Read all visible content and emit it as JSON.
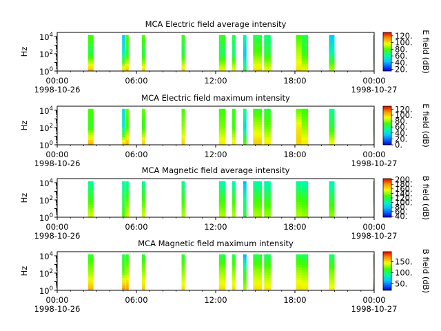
{
  "chart_data": [
    {
      "type": "heatmap",
      "title": "MCA  Electric field average intensity",
      "ylabel": "Hz",
      "y_scale": "log",
      "ylim": [
        1,
        30000
      ],
      "yticks": [
        {
          "value": 1,
          "base": "10",
          "exp": "0"
        },
        {
          "value": 100,
          "base": "10",
          "exp": "2"
        },
        {
          "value": 10000,
          "base": "10",
          "exp": "4"
        }
      ],
      "xlim": [
        "1998-10-26T00:00",
        "1998-10-27T00:00"
      ],
      "xticks": [
        {
          "time": "1998-10-26T00:00",
          "label": "00:00",
          "date": "1998-10-26"
        },
        {
          "time": "1998-10-26T06:00",
          "label": "06:00",
          "date": ""
        },
        {
          "time": "1998-10-26T12:00",
          "label": "12:00",
          "date": ""
        },
        {
          "time": "1998-10-26T18:00",
          "label": "18:00",
          "date": ""
        },
        {
          "time": "1998-10-27T00:00",
          "label": "00:00",
          "date": "1998-10-27"
        }
      ],
      "colorbar": {
        "label": "E field (dB)",
        "range": [
          15,
          130
        ],
        "ticks": [
          {
            "value": 20,
            "label": "20."
          },
          {
            "value": 40,
            "label": "40."
          },
          {
            "value": 60,
            "label": "60."
          },
          {
            "value": 80,
            "label": "80."
          },
          {
            "value": 100,
            "label": "100."
          },
          {
            "value": 120,
            "label": "120."
          }
        ]
      },
      "segments": [
        {
          "start": "1998-10-26T02:20",
          "end": "1998-10-26T02:45",
          "low_db": 105,
          "mid_db": 70,
          "high_db": 78
        },
        {
          "start": "1998-10-26T04:55",
          "end": "1998-10-26T05:08",
          "low_db": 100,
          "mid_db": 55,
          "high_db": 45
        },
        {
          "start": "1998-10-26T05:10",
          "end": "1998-10-26T05:25",
          "low_db": 105,
          "mid_db": 72,
          "high_db": 80
        },
        {
          "start": "1998-10-26T06:25",
          "end": "1998-10-26T06:40",
          "low_db": 100,
          "mid_db": 70,
          "high_db": 80
        },
        {
          "start": "1998-10-26T09:25",
          "end": "1998-10-26T09:40",
          "low_db": 100,
          "mid_db": 70,
          "high_db": 75
        },
        {
          "start": "1998-10-26T12:15",
          "end": "1998-10-26T12:45",
          "low_db": 95,
          "mid_db": 68,
          "high_db": 75
        },
        {
          "start": "1998-10-26T13:15",
          "end": "1998-10-26T13:30",
          "low_db": 95,
          "mid_db": 65,
          "high_db": 70
        },
        {
          "start": "1998-10-26T14:05",
          "end": "1998-10-26T14:20",
          "low_db": 70,
          "mid_db": 45,
          "high_db": 60
        },
        {
          "start": "1998-10-26T14:50",
          "end": "1998-10-26T15:30",
          "low_db": 100,
          "mid_db": 80,
          "high_db": 70
        },
        {
          "start": "1998-10-26T15:40",
          "end": "1998-10-26T16:10",
          "low_db": 95,
          "mid_db": 72,
          "high_db": 65
        },
        {
          "start": "1998-10-26T18:05",
          "end": "1998-10-26T18:30",
          "low_db": 100,
          "mid_db": 90,
          "high_db": 78
        },
        {
          "start": "1998-10-26T18:30",
          "end": "1998-10-26T19:00",
          "low_db": 95,
          "mid_db": 75,
          "high_db": 70
        },
        {
          "start": "1998-10-26T20:35",
          "end": "1998-10-26T21:00",
          "low_db": 90,
          "mid_db": 60,
          "high_db": 45
        },
        {
          "start": "1998-10-26T23:55",
          "end": "1998-10-27T00:00",
          "low_db": 95,
          "mid_db": 65,
          "high_db": 70
        }
      ]
    },
    {
      "type": "heatmap",
      "title": "MCA  Electric field maximum intensity",
      "ylabel": "Hz",
      "y_scale": "log",
      "ylim": [
        1,
        30000
      ],
      "yticks": [
        {
          "value": 1,
          "base": "10",
          "exp": "0"
        },
        {
          "value": 100,
          "base": "10",
          "exp": "2"
        },
        {
          "value": 10000,
          "base": "10",
          "exp": "4"
        }
      ],
      "xlim": [
        "1998-10-26T00:00",
        "1998-10-27T00:00"
      ],
      "xticks": [
        {
          "time": "1998-10-26T00:00",
          "label": "00:00",
          "date": "1998-10-26"
        },
        {
          "time": "1998-10-26T06:00",
          "label": "06:00",
          "date": ""
        },
        {
          "time": "1998-10-26T12:00",
          "label": "12:00",
          "date": ""
        },
        {
          "time": "1998-10-26T18:00",
          "label": "18:00",
          "date": ""
        },
        {
          "time": "1998-10-27T00:00",
          "label": "00:00",
          "date": "1998-10-27"
        }
      ],
      "colorbar": {
        "label": "E field (dB)",
        "range": [
          0,
          130
        ],
        "ticks": [
          {
            "value": 0,
            "label": "0."
          },
          {
            "value": 20,
            "label": "20."
          },
          {
            "value": 40,
            "label": "40."
          },
          {
            "value": 60,
            "label": "60."
          },
          {
            "value": 80,
            "label": "80."
          },
          {
            "value": 100,
            "label": "100."
          },
          {
            "value": 120,
            "label": "120."
          }
        ]
      },
      "segments": [
        {
          "start": "1998-10-26T02:20",
          "end": "1998-10-26T02:45",
          "low_db": 105,
          "mid_db": 68,
          "high_db": 72
        },
        {
          "start": "1998-10-26T04:55",
          "end": "1998-10-26T05:08",
          "low_db": 100,
          "mid_db": 45,
          "high_db": 40
        },
        {
          "start": "1998-10-26T05:10",
          "end": "1998-10-26T05:25",
          "low_db": 105,
          "mid_db": 70,
          "high_db": 75
        },
        {
          "start": "1998-10-26T06:25",
          "end": "1998-10-26T06:40",
          "low_db": 100,
          "mid_db": 68,
          "high_db": 75
        },
        {
          "start": "1998-10-26T09:25",
          "end": "1998-10-26T09:40",
          "low_db": 100,
          "mid_db": 80,
          "high_db": 72
        },
        {
          "start": "1998-10-26T12:15",
          "end": "1998-10-26T12:45",
          "low_db": 95,
          "mid_db": 78,
          "high_db": 70
        },
        {
          "start": "1998-10-26T13:15",
          "end": "1998-10-26T13:30",
          "low_db": 95,
          "mid_db": 70,
          "high_db": 68
        },
        {
          "start": "1998-10-26T14:05",
          "end": "1998-10-26T14:20",
          "low_db": 75,
          "mid_db": 40,
          "high_db": 55
        },
        {
          "start": "1998-10-26T14:50",
          "end": "1998-10-26T15:30",
          "low_db": 100,
          "mid_db": 85,
          "high_db": 68
        },
        {
          "start": "1998-10-26T15:40",
          "end": "1998-10-26T16:10",
          "low_db": 95,
          "mid_db": 75,
          "high_db": 65
        },
        {
          "start": "1998-10-26T18:05",
          "end": "1998-10-26T18:30",
          "low_db": 100,
          "mid_db": 95,
          "high_db": 75
        },
        {
          "start": "1998-10-26T18:30",
          "end": "1998-10-26T19:00",
          "low_db": 95,
          "mid_db": 80,
          "high_db": 70
        },
        {
          "start": "1998-10-26T20:35",
          "end": "1998-10-26T21:00",
          "low_db": 92,
          "mid_db": 65,
          "high_db": 55
        },
        {
          "start": "1998-10-26T23:55",
          "end": "1998-10-27T00:00",
          "low_db": 95,
          "mid_db": 60,
          "high_db": 65
        }
      ]
    },
    {
      "type": "heatmap",
      "title": "MCA  Magnetic field average intensity",
      "ylabel": "Hz",
      "y_scale": "log",
      "ylim": [
        1,
        30000
      ],
      "yticks": [
        {
          "value": 1,
          "base": "10",
          "exp": "0"
        },
        {
          "value": 100,
          "base": "10",
          "exp": "2"
        },
        {
          "value": 10000,
          "base": "10",
          "exp": "4"
        }
      ],
      "xlim": [
        "1998-10-26T00:00",
        "1998-10-27T00:00"
      ],
      "xticks": [
        {
          "time": "1998-10-26T00:00",
          "label": "00:00",
          "date": "1998-10-26"
        },
        {
          "time": "1998-10-26T06:00",
          "label": "06:00",
          "date": ""
        },
        {
          "time": "1998-10-26T12:00",
          "label": "12:00",
          "date": ""
        },
        {
          "time": "1998-10-26T18:00",
          "label": "18:00",
          "date": ""
        },
        {
          "time": "1998-10-27T00:00",
          "label": "00:00",
          "date": "1998-10-27"
        }
      ],
      "colorbar": {
        "label": "B field (dB)",
        "range": [
          35,
          205
        ],
        "ticks": [
          {
            "value": 40,
            "label": "40."
          },
          {
            "value": 60,
            "label": "60."
          },
          {
            "value": 80,
            "label": "80."
          },
          {
            "value": 100,
            "label": "100."
          },
          {
            "value": 120,
            "label": "120."
          },
          {
            "value": 140,
            "label": "140."
          },
          {
            "value": 160,
            "label": "160."
          },
          {
            "value": 180,
            "label": "180."
          },
          {
            "value": 200,
            "label": "200."
          }
        ]
      },
      "segments": [
        {
          "start": "1998-10-26T02:20",
          "end": "1998-10-26T02:45",
          "low_db": 150,
          "mid_db": 125,
          "high_db": 105
        },
        {
          "start": "1998-10-26T04:55",
          "end": "1998-10-26T05:08",
          "low_db": 130,
          "mid_db": 115,
          "high_db": 100
        },
        {
          "start": "1998-10-26T05:10",
          "end": "1998-10-26T05:25",
          "low_db": 150,
          "mid_db": 130,
          "high_db": 105
        },
        {
          "start": "1998-10-26T06:25",
          "end": "1998-10-26T06:40",
          "low_db": 150,
          "mid_db": 128,
          "high_db": 105
        },
        {
          "start": "1998-10-26T09:25",
          "end": "1998-10-26T09:40",
          "low_db": 145,
          "mid_db": 125,
          "high_db": 105
        },
        {
          "start": "1998-10-26T12:15",
          "end": "1998-10-26T12:45",
          "low_db": 145,
          "mid_db": 125,
          "high_db": 100
        },
        {
          "start": "1998-10-26T13:15",
          "end": "1998-10-26T13:30",
          "low_db": 145,
          "mid_db": 125,
          "high_db": 100
        },
        {
          "start": "1998-10-26T14:05",
          "end": "1998-10-26T14:20",
          "low_db": 120,
          "mid_db": 105,
          "high_db": 75
        },
        {
          "start": "1998-10-26T14:50",
          "end": "1998-10-26T15:30",
          "low_db": 145,
          "mid_db": 125,
          "high_db": 102
        },
        {
          "start": "1998-10-26T15:40",
          "end": "1998-10-26T16:10",
          "low_db": 142,
          "mid_db": 122,
          "high_db": 100
        },
        {
          "start": "1998-10-26T18:05",
          "end": "1998-10-26T18:30",
          "low_db": 145,
          "mid_db": 128,
          "high_db": 102
        },
        {
          "start": "1998-10-26T18:30",
          "end": "1998-10-26T19:00",
          "low_db": 142,
          "mid_db": 124,
          "high_db": 100
        },
        {
          "start": "1998-10-26T20:35",
          "end": "1998-10-26T21:00",
          "low_db": 140,
          "mid_db": 120,
          "high_db": 98
        },
        {
          "start": "1998-10-26T23:55",
          "end": "1998-10-27T00:00",
          "low_db": 160,
          "mid_db": 130,
          "high_db": 110
        }
      ]
    },
    {
      "type": "heatmap",
      "title": "MCA  Magnetic field maximum intensity",
      "ylabel": "Hz",
      "y_scale": "log",
      "ylim": [
        1,
        30000
      ],
      "yticks": [
        {
          "value": 1,
          "base": "10",
          "exp": "0"
        },
        {
          "value": 100,
          "base": "10",
          "exp": "2"
        },
        {
          "value": 10000,
          "base": "10",
          "exp": "4"
        }
      ],
      "xlim": [
        "1998-10-26T00:00",
        "1998-10-27T00:00"
      ],
      "xticks": [
        {
          "time": "1998-10-26T00:00",
          "label": "00:00",
          "date": "1998-10-26"
        },
        {
          "time": "1998-10-26T06:00",
          "label": "06:00",
          "date": ""
        },
        {
          "time": "1998-10-26T12:00",
          "label": "12:00",
          "date": ""
        },
        {
          "time": "1998-10-26T18:00",
          "label": "18:00",
          "date": ""
        },
        {
          "time": "1998-10-27T00:00",
          "label": "00:00",
          "date": "1998-10-27"
        }
      ],
      "colorbar": {
        "label": "B field (dB)",
        "range": [
          20,
          195
        ],
        "ticks": [
          {
            "value": 50,
            "label": "50."
          },
          {
            "value": 100,
            "label": "100."
          },
          {
            "value": 150,
            "label": "150."
          }
        ]
      },
      "segments": [
        {
          "start": "1998-10-26T02:20",
          "end": "1998-10-26T02:45",
          "low_db": 160,
          "mid_db": 130,
          "high_db": 110
        },
        {
          "start": "1998-10-26T04:55",
          "end": "1998-10-26T05:08",
          "low_db": 170,
          "mid_db": 120,
          "high_db": 105
        },
        {
          "start": "1998-10-26T05:10",
          "end": "1998-10-26T05:25",
          "low_db": 165,
          "mid_db": 132,
          "high_db": 110
        },
        {
          "start": "1998-10-26T06:25",
          "end": "1998-10-26T06:40",
          "low_db": 155,
          "mid_db": 130,
          "high_db": 110
        },
        {
          "start": "1998-10-26T09:25",
          "end": "1998-10-26T09:40",
          "low_db": 150,
          "mid_db": 128,
          "high_db": 108
        },
        {
          "start": "1998-10-26T12:15",
          "end": "1998-10-26T12:45",
          "low_db": 150,
          "mid_db": 130,
          "high_db": 105
        },
        {
          "start": "1998-10-26T13:15",
          "end": "1998-10-26T13:30",
          "low_db": 150,
          "mid_db": 128,
          "high_db": 105
        },
        {
          "start": "1998-10-26T14:05",
          "end": "1998-10-26T14:20",
          "low_db": 130,
          "mid_db": 110,
          "high_db": 60
        },
        {
          "start": "1998-10-26T14:50",
          "end": "1998-10-26T15:30",
          "low_db": 150,
          "mid_db": 130,
          "high_db": 105
        },
        {
          "start": "1998-10-26T15:40",
          "end": "1998-10-26T16:10",
          "low_db": 148,
          "mid_db": 126,
          "high_db": 102
        },
        {
          "start": "1998-10-26T18:05",
          "end": "1998-10-26T18:30",
          "low_db": 150,
          "mid_db": 132,
          "high_db": 105
        },
        {
          "start": "1998-10-26T18:30",
          "end": "1998-10-26T19:00",
          "low_db": 148,
          "mid_db": 128,
          "high_db": 102
        },
        {
          "start": "1998-10-26T20:35",
          "end": "1998-10-26T21:00",
          "low_db": 145,
          "mid_db": 125,
          "high_db": 100
        },
        {
          "start": "1998-10-26T23:55",
          "end": "1998-10-27T00:00",
          "low_db": 175,
          "mid_db": 135,
          "high_db": 110
        }
      ]
    }
  ]
}
